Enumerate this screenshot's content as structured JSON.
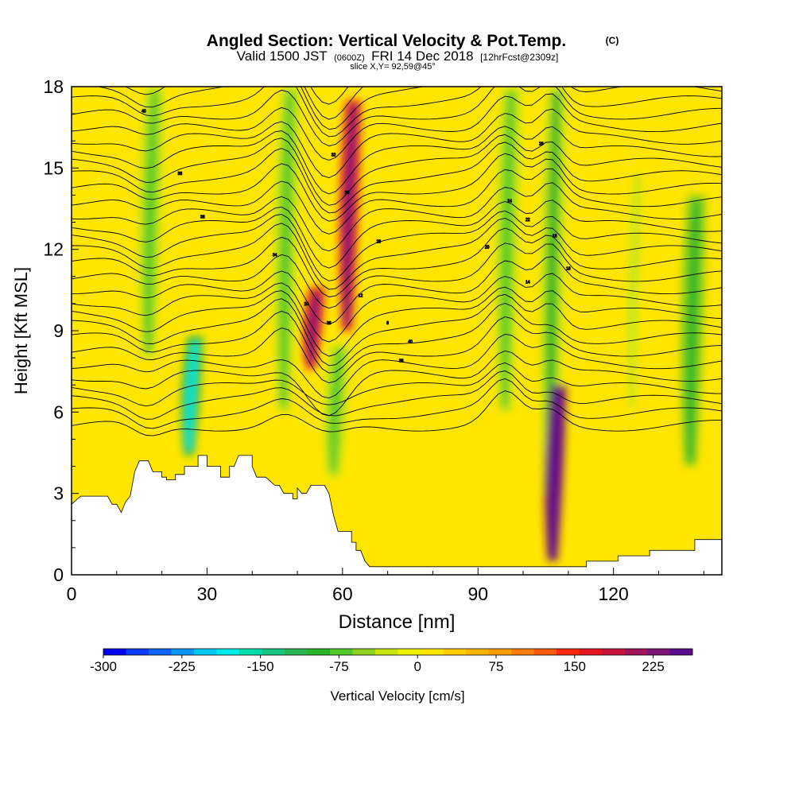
{
  "chart_data": {
    "type": "heatmap",
    "title": "Angled Section: Vertical Velocity & Pot.Temp.",
    "title_suffix": "(C)",
    "subtitle_parts": [
      "Valid 1500 JST",
      "(0600Z)",
      "FRI 14 Dec 2018",
      "[12hrFcst@2309z]"
    ],
    "subtitle2": "slice X,Y= 92,59@45°",
    "xlabel": "Distance [nm]",
    "ylabel": "Height [Kft MSL]",
    "xlim": [
      0,
      144
    ],
    "ylim": [
      0,
      18
    ],
    "x_ticks": [
      0,
      30,
      60,
      90,
      120
    ],
    "y_ticks": [
      0,
      3,
      6,
      9,
      12,
      15,
      18
    ],
    "colorbar": {
      "label": "Vertical Velocity [cm/s]",
      "range": [
        -300,
        262.5
      ],
      "step": 18.75,
      "tick_values": [
        -300,
        -225,
        -150,
        -75,
        0,
        75,
        150,
        225
      ],
      "tick_labels": [
        "-300",
        "-225",
        "-150",
        "-75",
        "0",
        "75",
        "150",
        "225"
      ],
      "colors": [
        "#0000f0",
        "#0a3cff",
        "#0a64ff",
        "#0a96ff",
        "#00c8ff",
        "#00ebe6",
        "#00dcaa",
        "#14c882",
        "#28b450",
        "#28b428",
        "#50c828",
        "#8cd21e",
        "#c8e614",
        "#f0f000",
        "#ffe600",
        "#ffcd00",
        "#ffb400",
        "#ff9b00",
        "#ff7d00",
        "#ff5a0a",
        "#ff280a",
        "#e6141e",
        "#c8143c",
        "#a0145a",
        "#7d1478",
        "#5a0a8c"
      ]
    },
    "vertical_velocity_features": [
      {
        "x": 17,
        "base": 8,
        "top": 18,
        "w": -110
      },
      {
        "x": 26,
        "base": 4.4,
        "top": 8.8,
        "w": -200
      },
      {
        "x": 47,
        "base": 6,
        "top": 18,
        "w": -110
      },
      {
        "x": 61,
        "base": 9,
        "top": 17.5,
        "w": 160
      },
      {
        "x": 53,
        "base": 7.6,
        "top": 10.6,
        "w": 165
      },
      {
        "x": 58,
        "base": 3.6,
        "top": 8.5,
        "w": -110
      },
      {
        "x": 96,
        "base": 6,
        "top": 18,
        "w": -110
      },
      {
        "x": 106,
        "base": 3,
        "top": 18,
        "w": -120
      },
      {
        "x": 106.5,
        "base": 0.5,
        "top": 7,
        "w": 260
      },
      {
        "x": 137,
        "base": 4,
        "top": 14,
        "w": -130
      },
      {
        "x": 124,
        "base": 6,
        "top": 15,
        "w": -60
      }
    ],
    "terrain": [
      [
        0,
        2.6
      ],
      [
        2,
        2.9
      ],
      [
        8,
        2.9
      ],
      [
        9,
        2.6
      ],
      [
        10,
        2.6
      ],
      [
        11,
        2.3
      ],
      [
        12,
        2.7
      ],
      [
        13,
        2.9
      ],
      [
        14,
        3.8
      ],
      [
        15,
        4.2
      ],
      [
        17,
        4.2
      ],
      [
        18,
        3.8
      ],
      [
        20,
        3.8
      ],
      [
        20,
        3.6
      ],
      [
        21,
        3.6
      ],
      [
        21,
        3.5
      ],
      [
        23,
        3.5
      ],
      [
        23,
        3.7
      ],
      [
        25,
        3.7
      ],
      [
        25,
        4.0
      ],
      [
        28,
        4.0
      ],
      [
        28,
        4.4
      ],
      [
        30,
        4.4
      ],
      [
        30,
        4.0
      ],
      [
        33,
        4.0
      ],
      [
        33,
        3.6
      ],
      [
        35,
        3.6
      ],
      [
        35,
        4.0
      ],
      [
        36,
        4.0
      ],
      [
        37,
        4.4
      ],
      [
        40,
        4.4
      ],
      [
        40,
        4.0
      ],
      [
        41,
        3.6
      ],
      [
        43,
        3.6
      ],
      [
        45,
        3.3
      ],
      [
        46,
        3.3
      ],
      [
        47,
        3.0
      ],
      [
        49,
        3.0
      ],
      [
        49,
        2.8
      ],
      [
        50,
        2.8
      ],
      [
        50,
        3.2
      ],
      [
        51,
        3.0
      ],
      [
        52,
        3.0
      ],
      [
        53,
        3.3
      ],
      [
        56,
        3.3
      ],
      [
        57,
        3.0
      ],
      [
        58,
        2.2
      ],
      [
        59,
        1.6
      ],
      [
        62,
        1.6
      ],
      [
        62,
        1.2
      ],
      [
        63,
        1.2
      ],
      [
        63,
        0.9
      ],
      [
        64,
        0.9
      ],
      [
        65,
        0.5
      ],
      [
        66,
        0.3
      ],
      [
        75,
        0.3
      ],
      [
        84,
        0.3
      ],
      [
        85,
        0.3
      ],
      [
        99,
        0.3
      ],
      [
        109,
        0.3
      ],
      [
        114,
        0.3
      ],
      [
        114,
        0.5
      ],
      [
        121,
        0.5
      ],
      [
        121,
        0.7
      ],
      [
        128,
        0.7
      ],
      [
        128,
        0.9
      ],
      [
        138,
        0.9
      ],
      [
        138,
        1.3
      ],
      [
        144,
        1.3
      ]
    ],
    "theta_contour_labels": [
      "40",
      "38",
      "36",
      "34",
      "32",
      "30",
      "28",
      "26",
      "24",
      "22",
      "20",
      "18",
      "16",
      "14",
      "12",
      "10",
      "8"
    ]
  }
}
